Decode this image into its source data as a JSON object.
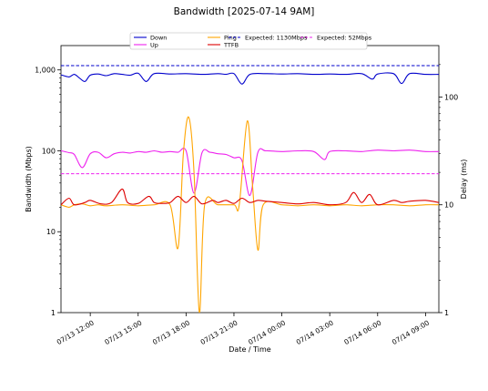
{
  "chart_data": {
    "type": "line",
    "title": "Bandwidth [2025-07-14 9AM]",
    "xlabel": "Date / Time",
    "ylabel": "Bandwidth (Mbps)",
    "y2label": "Delay (ms)",
    "x_range": [
      "2025-07-13 10:10",
      "2025-07-14 09:50"
    ],
    "x_ticks": [
      "07/13 12:00",
      "07/13 15:00",
      "07/13 18:00",
      "07/13 21:00",
      "07/14 00:00",
      "07/14 03:00",
      "07/14 06:00",
      "07/14 09:00"
    ],
    "x_tick_times": [
      "2025-07-13 12:00",
      "2025-07-13 15:00",
      "2025-07-13 18:00",
      "2025-07-13 21:00",
      "2025-07-14 00:00",
      "2025-07-14 03:00",
      "2025-07-14 06:00",
      "2025-07-14 09:00"
    ],
    "y_scale": "log",
    "y_range": [
      1,
      2000
    ],
    "y_ticks": [
      "1",
      "10",
      "100",
      "1,000"
    ],
    "y_tick_values": [
      1,
      10,
      100,
      1000
    ],
    "y2_scale": "log",
    "y2_range": [
      1,
      300
    ],
    "y2_ticks": [
      "1",
      "10",
      "100"
    ],
    "y2_tick_values": [
      1,
      10,
      100
    ],
    "legend_position": "top-center",
    "series": [
      {
        "name": "Down",
        "axis": "left",
        "color": "#0000cc",
        "points": [
          [
            "2025-07-13 10:10",
            870
          ],
          [
            "2025-07-13 10:40",
            820
          ],
          [
            "2025-07-13 11:00",
            880
          ],
          [
            "2025-07-13 11:20",
            790
          ],
          [
            "2025-07-13 11:40",
            720
          ],
          [
            "2025-07-13 12:00",
            860
          ],
          [
            "2025-07-13 12:30",
            890
          ],
          [
            "2025-07-13 13:00",
            850
          ],
          [
            "2025-07-13 13:30",
            900
          ],
          [
            "2025-07-13 14:00",
            880
          ],
          [
            "2025-07-13 14:30",
            860
          ],
          [
            "2025-07-13 15:00",
            910
          ],
          [
            "2025-07-13 15:30",
            720
          ],
          [
            "2025-07-13 16:00",
            900
          ],
          [
            "2025-07-13 17:00",
            890
          ],
          [
            "2025-07-13 18:00",
            900
          ],
          [
            "2025-07-13 19:00",
            880
          ],
          [
            "2025-07-13 20:00",
            900
          ],
          [
            "2025-07-13 20:30",
            880
          ],
          [
            "2025-07-13 21:00",
            900
          ],
          [
            "2025-07-13 21:30",
            670
          ],
          [
            "2025-07-13 22:00",
            880
          ],
          [
            "2025-07-13 23:00",
            900
          ],
          [
            "2025-07-14 00:00",
            890
          ],
          [
            "2025-07-14 01:00",
            900
          ],
          [
            "2025-07-14 02:00",
            880
          ],
          [
            "2025-07-14 03:00",
            890
          ],
          [
            "2025-07-14 04:00",
            880
          ],
          [
            "2025-07-14 05:00",
            900
          ],
          [
            "2025-07-14 05:40",
            770
          ],
          [
            "2025-07-14 06:00",
            890
          ],
          [
            "2025-07-14 07:00",
            900
          ],
          [
            "2025-07-14 07:30",
            680
          ],
          [
            "2025-07-14 08:00",
            900
          ],
          [
            "2025-07-14 09:00",
            880
          ],
          [
            "2025-07-14 09:50",
            880
          ]
        ]
      },
      {
        "name": "Up",
        "axis": "left",
        "color": "#ee22ee",
        "points": [
          [
            "2025-07-13 10:10",
            100
          ],
          [
            "2025-07-13 10:40",
            95
          ],
          [
            "2025-07-13 11:00",
            90
          ],
          [
            "2025-07-13 11:30",
            62
          ],
          [
            "2025-07-13 12:00",
            92
          ],
          [
            "2025-07-13 12:30",
            96
          ],
          [
            "2025-07-13 13:00",
            82
          ],
          [
            "2025-07-13 13:30",
            92
          ],
          [
            "2025-07-13 14:00",
            96
          ],
          [
            "2025-07-13 14:30",
            94
          ],
          [
            "2025-07-13 15:00",
            98
          ],
          [
            "2025-07-13 15:30",
            96
          ],
          [
            "2025-07-13 16:00",
            100
          ],
          [
            "2025-07-13 16:30",
            96
          ],
          [
            "2025-07-13 17:00",
            98
          ],
          [
            "2025-07-13 17:30",
            96
          ],
          [
            "2025-07-13 18:00",
            100
          ],
          [
            "2025-07-13 18:30",
            30
          ],
          [
            "2025-07-13 19:00",
            95
          ],
          [
            "2025-07-13 19:30",
            96
          ],
          [
            "2025-07-13 20:00",
            92
          ],
          [
            "2025-07-13 20:30",
            90
          ],
          [
            "2025-07-13 21:00",
            82
          ],
          [
            "2025-07-13 21:30",
            76
          ],
          [
            "2025-07-13 22:00",
            28
          ],
          [
            "2025-07-13 22:30",
            96
          ],
          [
            "2025-07-13 23:00",
            100
          ],
          [
            "2025-07-14 00:00",
            98
          ],
          [
            "2025-07-14 01:00",
            100
          ],
          [
            "2025-07-14 02:00",
            98
          ],
          [
            "2025-07-14 02:40",
            78
          ],
          [
            "2025-07-14 03:00",
            98
          ],
          [
            "2025-07-14 04:00",
            100
          ],
          [
            "2025-07-14 05:00",
            98
          ],
          [
            "2025-07-14 06:00",
            102
          ],
          [
            "2025-07-14 07:00",
            100
          ],
          [
            "2025-07-14 08:00",
            102
          ],
          [
            "2025-07-14 09:00",
            98
          ],
          [
            "2025-07-14 09:50",
            98
          ]
        ]
      },
      {
        "name": "Ping",
        "axis": "right",
        "color": "#ffa500",
        "points": [
          [
            "2025-07-13 10:10",
            10
          ],
          [
            "2025-07-13 10:40",
            9.5
          ],
          [
            "2025-07-13 11:00",
            10
          ],
          [
            "2025-07-13 11:30",
            10.2
          ],
          [
            "2025-07-13 12:00",
            9.8
          ],
          [
            "2025-07-13 12:30",
            10
          ],
          [
            "2025-07-13 13:00",
            9.8
          ],
          [
            "2025-07-13 14:00",
            10
          ],
          [
            "2025-07-13 15:00",
            9.8
          ],
          [
            "2025-07-13 16:00",
            10
          ],
          [
            "2025-07-13 17:00",
            10
          ],
          [
            "2025-07-13 17:30",
            4
          ],
          [
            "2025-07-13 17:50",
            30
          ],
          [
            "2025-07-13 18:10",
            65
          ],
          [
            "2025-07-13 18:30",
            20
          ],
          [
            "2025-07-13 18:50",
            1
          ],
          [
            "2025-07-13 19:10",
            10
          ],
          [
            "2025-07-13 20:00",
            10
          ],
          [
            "2025-07-13 21:00",
            10
          ],
          [
            "2025-07-13 21:20",
            10
          ],
          [
            "2025-07-13 21:50",
            60
          ],
          [
            "2025-07-13 22:10",
            15
          ],
          [
            "2025-07-13 22:30",
            3.8
          ],
          [
            "2025-07-13 22:50",
            10
          ],
          [
            "2025-07-14 00:00",
            10
          ],
          [
            "2025-07-14 01:00",
            9.8
          ],
          [
            "2025-07-14 02:00",
            10
          ],
          [
            "2025-07-14 03:00",
            9.8
          ],
          [
            "2025-07-14 04:00",
            10
          ],
          [
            "2025-07-14 05:00",
            9.8
          ],
          [
            "2025-07-14 06:00",
            10
          ],
          [
            "2025-07-14 07:00",
            10
          ],
          [
            "2025-07-14 08:00",
            9.8
          ],
          [
            "2025-07-14 09:00",
            10
          ],
          [
            "2025-07-14 09:50",
            10
          ]
        ]
      },
      {
        "name": "TTFB",
        "axis": "right",
        "color": "#dd0000",
        "points": [
          [
            "2025-07-13 10:10",
            10
          ],
          [
            "2025-07-13 10:40",
            11.5
          ],
          [
            "2025-07-13 11:00",
            10
          ],
          [
            "2025-07-13 11:40",
            10.5
          ],
          [
            "2025-07-13 12:00",
            11
          ],
          [
            "2025-07-13 12:40",
            10.2
          ],
          [
            "2025-07-13 13:20",
            10.5
          ],
          [
            "2025-07-13 14:00",
            14
          ],
          [
            "2025-07-13 14:20",
            10.5
          ],
          [
            "2025-07-13 15:00",
            10.3
          ],
          [
            "2025-07-13 15:40",
            12
          ],
          [
            "2025-07-13 16:00",
            10.5
          ],
          [
            "2025-07-13 16:30",
            10.3
          ],
          [
            "2025-07-13 17:00",
            10.5
          ],
          [
            "2025-07-13 17:30",
            12
          ],
          [
            "2025-07-13 18:00",
            10.5
          ],
          [
            "2025-07-13 18:30",
            12
          ],
          [
            "2025-07-13 19:00",
            10.2
          ],
          [
            "2025-07-13 19:40",
            11
          ],
          [
            "2025-07-13 20:00",
            10.5
          ],
          [
            "2025-07-13 20:30",
            11
          ],
          [
            "2025-07-13 21:00",
            10.3
          ],
          [
            "2025-07-13 21:30",
            11.5
          ],
          [
            "2025-07-13 22:00",
            10.5
          ],
          [
            "2025-07-13 22:30",
            11
          ],
          [
            "2025-07-13 23:00",
            10.8
          ],
          [
            "2025-07-14 00:00",
            10.5
          ],
          [
            "2025-07-14 01:00",
            10.2
          ],
          [
            "2025-07-14 02:00",
            10.5
          ],
          [
            "2025-07-14 03:00",
            10
          ],
          [
            "2025-07-14 04:00",
            10.5
          ],
          [
            "2025-07-14 04:30",
            13
          ],
          [
            "2025-07-14 05:00",
            10.5
          ],
          [
            "2025-07-14 05:30",
            12.5
          ],
          [
            "2025-07-14 06:00",
            10
          ],
          [
            "2025-07-14 07:00",
            11
          ],
          [
            "2025-07-14 07:30",
            10.5
          ],
          [
            "2025-07-14 08:00",
            10.8
          ],
          [
            "2025-07-14 09:00",
            11
          ],
          [
            "2025-07-14 09:50",
            10.5
          ]
        ]
      },
      {
        "name": "Expected: 1130Mbps",
        "axis": "left",
        "color": "#0000cc",
        "dashed": true,
        "constant": 1130
      },
      {
        "name": "Expected: 52Mbps",
        "axis": "left",
        "color": "#ee22ee",
        "dashed": true,
        "constant": 52
      }
    ]
  }
}
